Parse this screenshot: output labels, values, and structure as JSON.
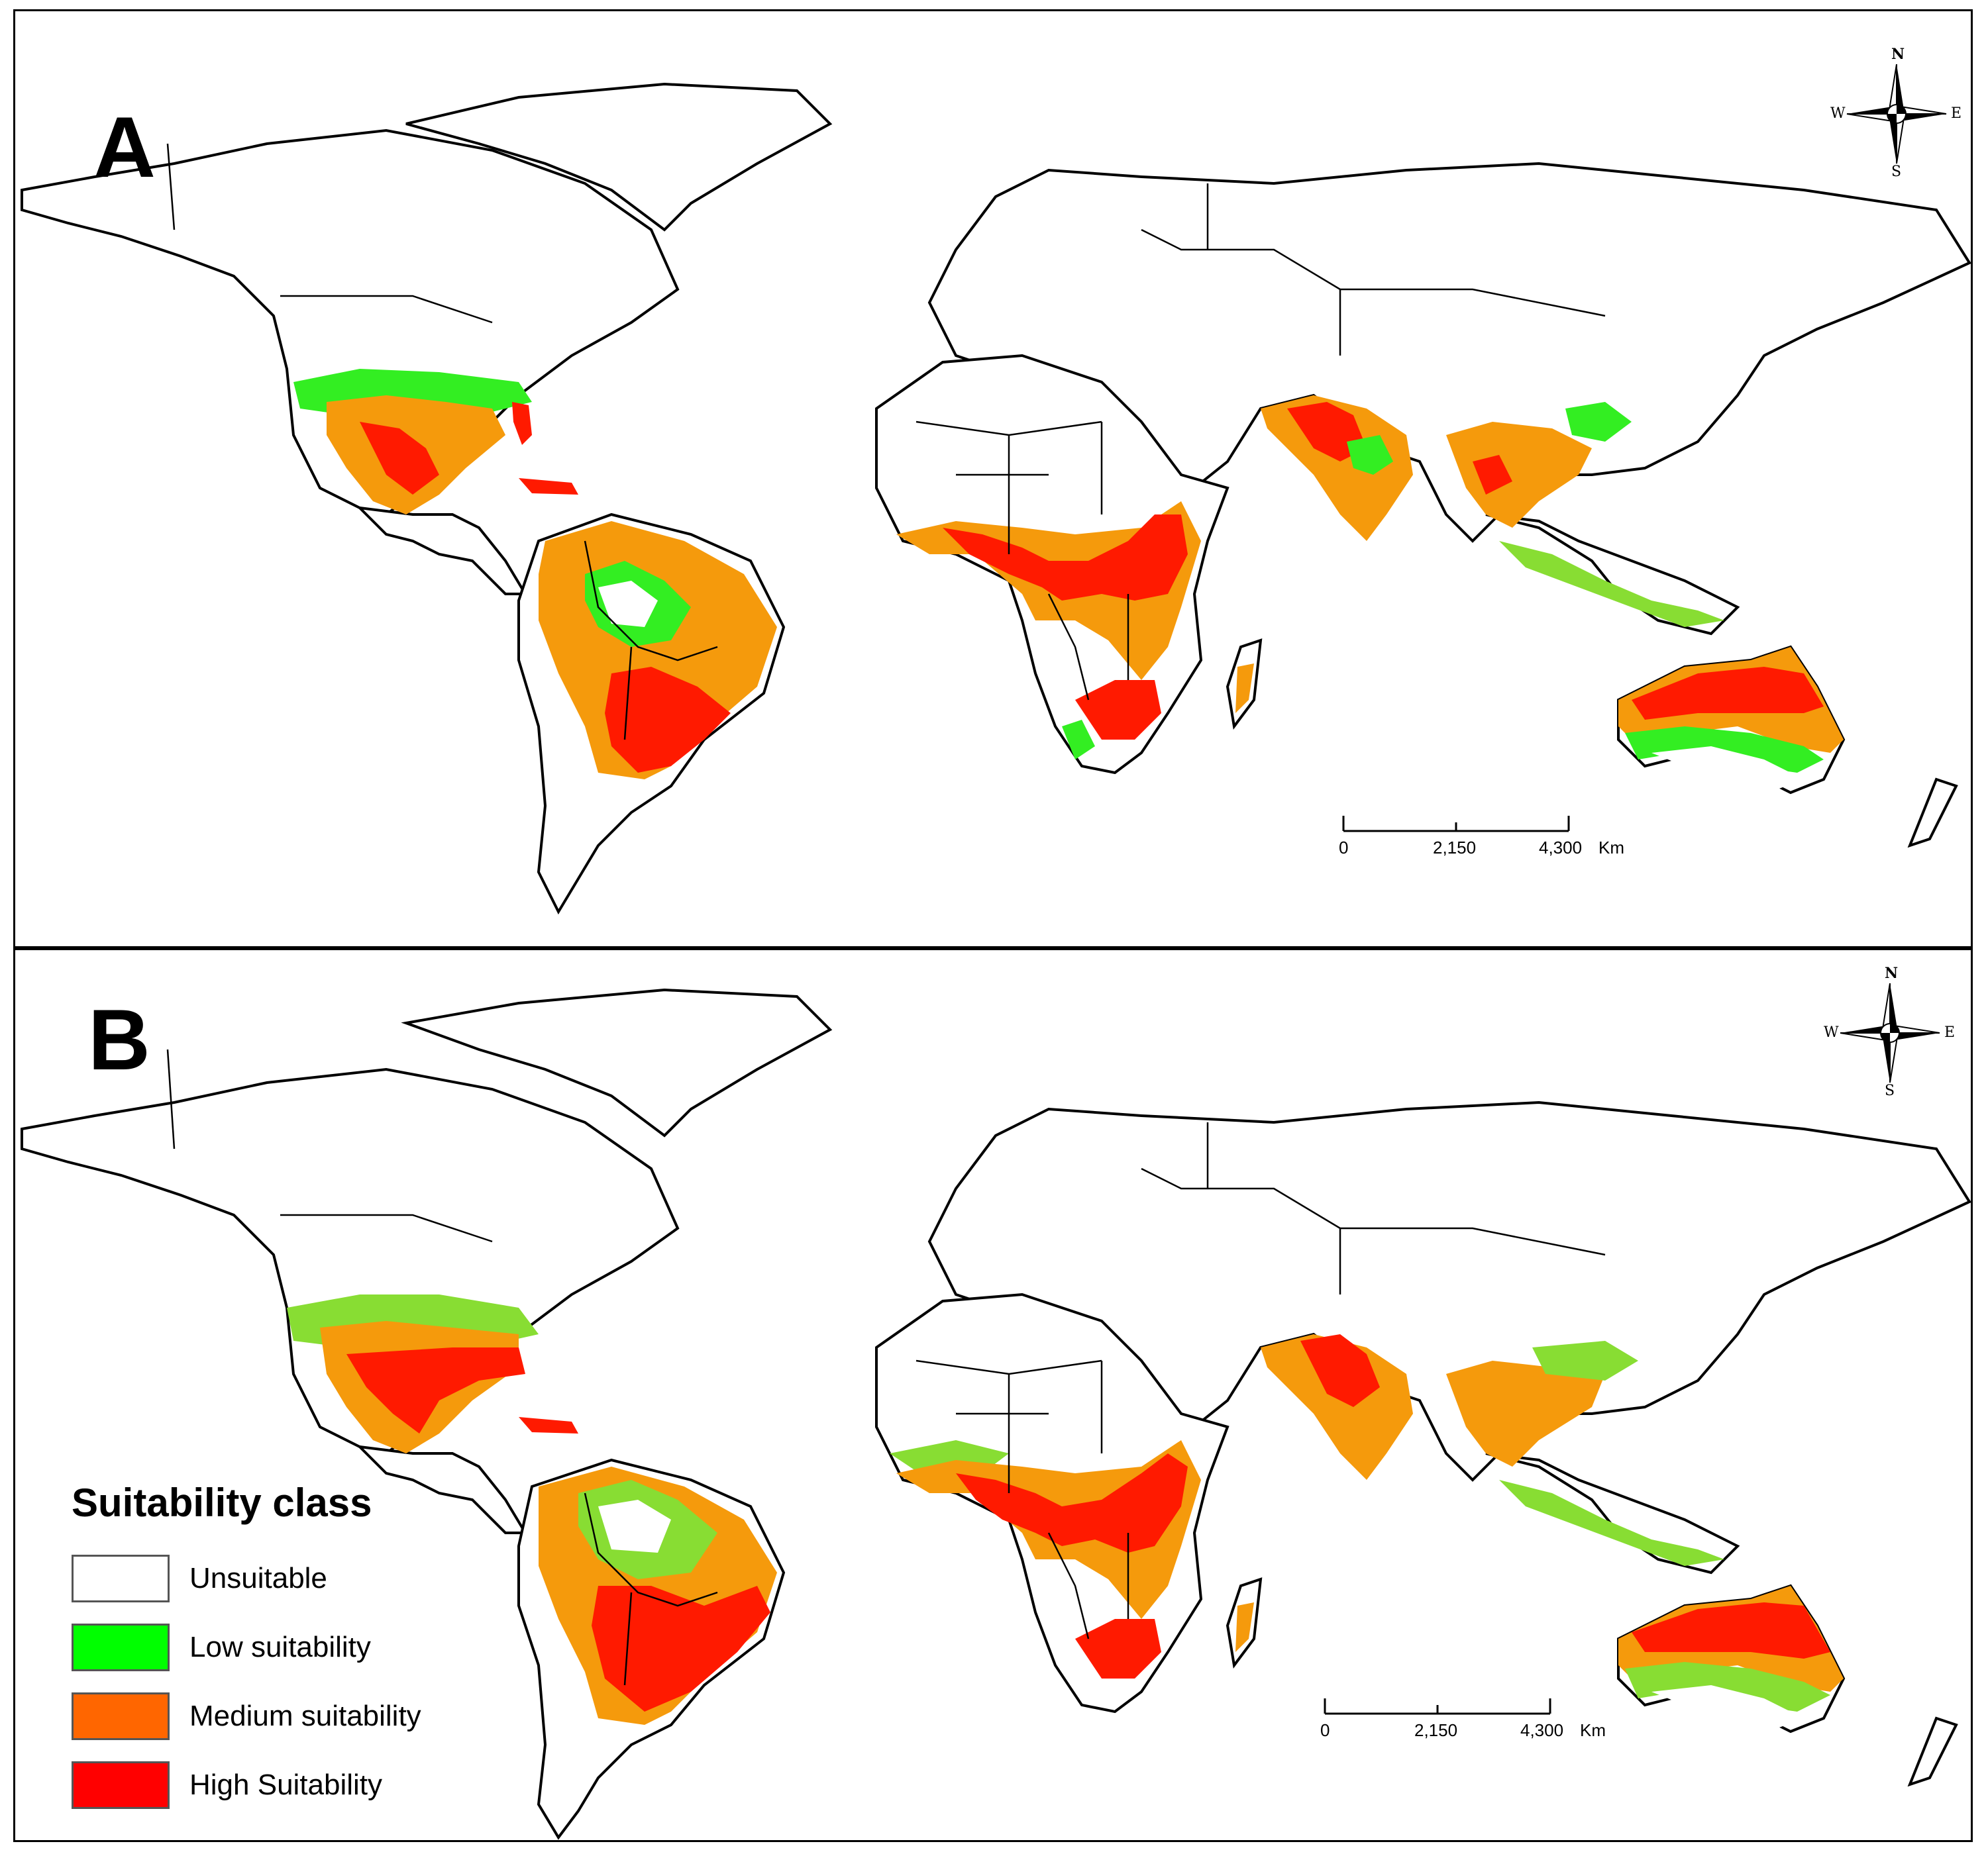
{
  "panels": [
    {
      "label": "A",
      "scale": {
        "ticks": [
          "0",
          "2,150",
          "4,300"
        ],
        "unit": "Km"
      }
    },
    {
      "label": "B",
      "scale": {
        "ticks": [
          "0",
          "2,150",
          "4,300"
        ],
        "unit": "Km"
      }
    }
  ],
  "compass": {
    "n": "N",
    "s": "S",
    "e": "E",
    "w": "W"
  },
  "legend": {
    "title": "Suitability class",
    "items": [
      {
        "label": "Unsuitable",
        "color": "#ffffff"
      },
      {
        "label": "Low suitability",
        "color": "#00ff00"
      },
      {
        "label": "Medium suitability",
        "color": "#ff6600"
      },
      {
        "label": "High Suitability",
        "color": "#ff0000"
      }
    ]
  },
  "map_colors": {
    "unsuitable": "#ffffff",
    "low": "#33ee22",
    "low_b": "#88dd33",
    "medium": "#f59a0c",
    "high": "#ff1a00"
  }
}
